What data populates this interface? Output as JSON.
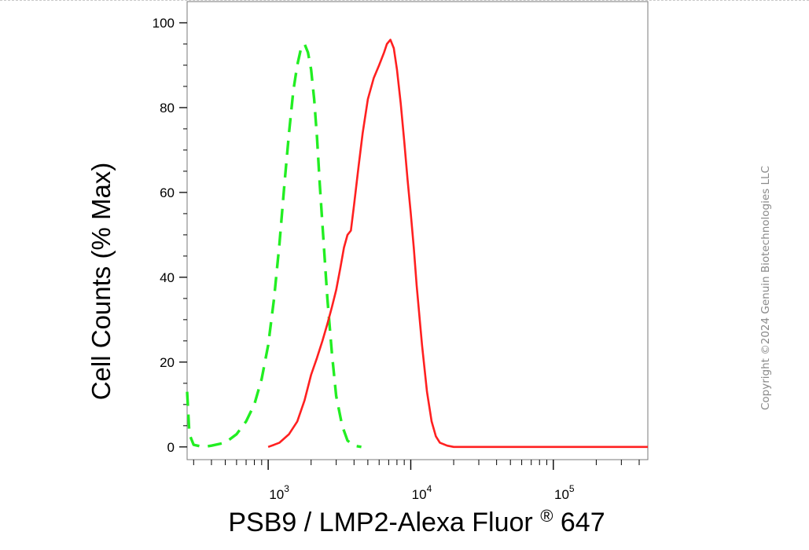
{
  "chart_data": {
    "type": "line",
    "xlabel": "PSB9 / LMP2-Alexa Fluor® 647",
    "xlabel_main": "PSB9 / LMP2-Alexa Fluor",
    "xlabel_reg": "®",
    "xlabel_tail": " 647",
    "ylabel": "Cell Counts (% Max)",
    "x_scale": "log",
    "xlim": [
      270,
      460000
    ],
    "ylim": [
      -3,
      105
    ],
    "y_ticks": [
      "0",
      "20",
      "40",
      "60",
      "80",
      "100"
    ],
    "x_ticks": [
      {
        "base": "10",
        "exp": "3"
      },
      {
        "base": "10",
        "exp": "4"
      },
      {
        "base": "10",
        "exp": "5"
      }
    ],
    "grid": false,
    "legend": "none",
    "series": [
      {
        "color": "#22ee22",
        "dash": "dashed",
        "x": [
          270,
          280,
          300,
          350,
          400,
          500,
          600,
          700,
          800,
          900,
          1000,
          1100,
          1200,
          1300,
          1400,
          1500,
          1600,
          1700,
          1800,
          1900,
          2000,
          2100,
          2200,
          2300,
          2450,
          2600,
          2800,
          3000,
          3300,
          3600,
          4000,
          4500
        ],
        "y": [
          13,
          3,
          0.5,
          0,
          0.3,
          1,
          3,
          6,
          10,
          16,
          24,
          35,
          48,
          62,
          74,
          84,
          90,
          94,
          95,
          93,
          89,
          82,
          73,
          62,
          48,
          35,
          22,
          12,
          5,
          1.5,
          0.3,
          0
        ]
      },
      {
        "color": "#ff2020",
        "dash": "solid",
        "x": [
          1000,
          1100,
          1200,
          1400,
          1600,
          1800,
          2000,
          2200,
          2400,
          2600,
          2800,
          3000,
          3200,
          3400,
          3600,
          3800,
          4000,
          4300,
          4600,
          5000,
          5500,
          6000,
          6500,
          6800,
          7200,
          7600,
          8000,
          8500,
          9000,
          9500,
          10000,
          10500,
          11000,
          12000,
          13000,
          14000,
          15000,
          16000,
          18000,
          20000,
          25000,
          30000,
          50000,
          100000,
          200000,
          460000
        ],
        "y": [
          0,
          0.5,
          1,
          3,
          6,
          11,
          17,
          21,
          25,
          29,
          33,
          37,
          42,
          47,
          50,
          51,
          57,
          66,
          74,
          82,
          87,
          90,
          93,
          95,
          96,
          94,
          89,
          81,
          72,
          63,
          55,
          47,
          38,
          24,
          13,
          6,
          2.5,
          1,
          0.3,
          0,
          0,
          0,
          0,
          0,
          0,
          0
        ]
      }
    ]
  },
  "watermark": "Copyright ©2024 Genuin Biotechnologies LLC"
}
